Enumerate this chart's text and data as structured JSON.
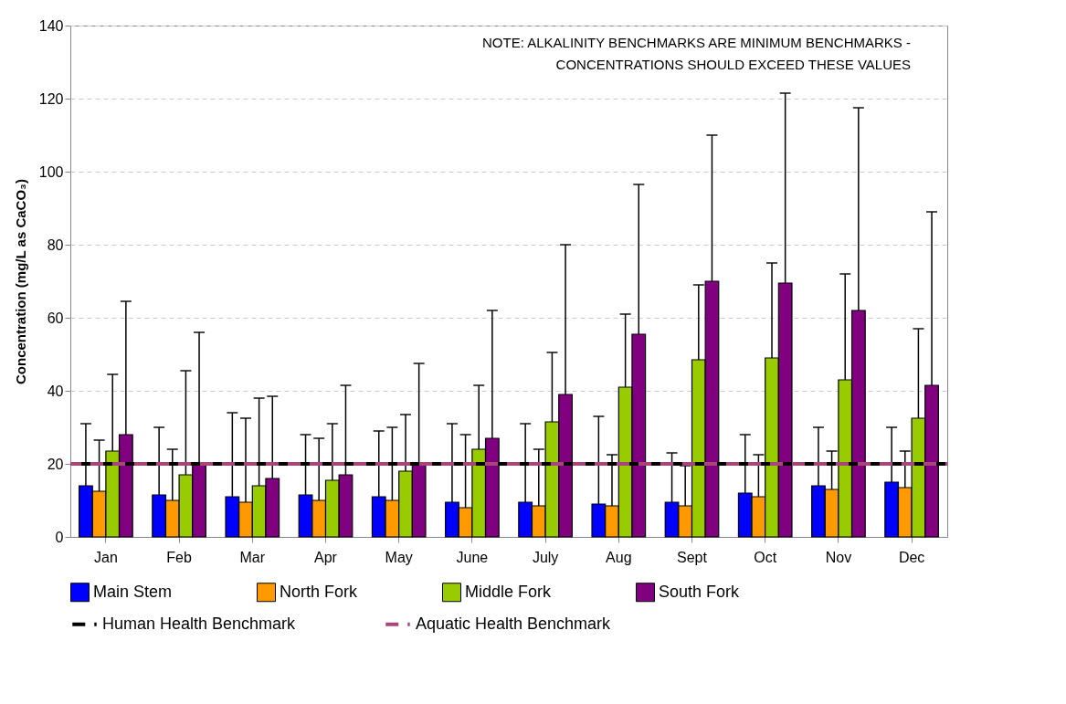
{
  "chart_data": {
    "type": "bar",
    "ylabel": "Concentration (mg/L as CaCO₃)",
    "categories": [
      "Jan",
      "Feb",
      "Mar",
      "Apr",
      "May",
      "June",
      "July",
      "Aug",
      "Sept",
      "Oct",
      "Nov",
      "Dec"
    ],
    "series": [
      {
        "name": "Main Stem",
        "color": "#0000ff",
        "values": [
          14,
          11.5,
          11,
          11.5,
          11,
          9.5,
          9.5,
          9,
          9.5,
          12,
          14,
          15
        ],
        "errors": [
          [
            14,
            31
          ],
          [
            11.5,
            30
          ],
          [
            11,
            34
          ],
          [
            11.5,
            28
          ],
          [
            11,
            29
          ],
          [
            9.5,
            31
          ],
          [
            9.5,
            31
          ],
          [
            9,
            33
          ],
          [
            9.5,
            23
          ],
          [
            12,
            28
          ],
          [
            14,
            30
          ],
          [
            15,
            30
          ]
        ]
      },
      {
        "name": "North Fork",
        "color": "#ff9900",
        "values": [
          12.5,
          10,
          9.5,
          10,
          10,
          8,
          8.5,
          8.5,
          8.5,
          11,
          13,
          13.5
        ],
        "errors": [
          [
            12.5,
            26.5
          ],
          [
            10,
            24
          ],
          [
            9.5,
            32.5
          ],
          [
            10,
            27
          ],
          [
            10,
            30
          ],
          [
            8,
            28
          ],
          [
            8.5,
            24
          ],
          [
            8.5,
            22.5
          ],
          [
            8.5,
            19.5
          ],
          [
            11,
            22.5
          ],
          [
            13,
            23.5
          ],
          [
            13.5,
            23.5
          ]
        ]
      },
      {
        "name": "Middle Fork",
        "color": "#99cc00",
        "values": [
          23.5,
          17,
          14,
          15.5,
          18,
          24,
          31.5,
          41,
          48.5,
          49,
          43,
          32.5
        ],
        "errors": [
          [
            23.5,
            44.5
          ],
          [
            17,
            45.5
          ],
          [
            14,
            38
          ],
          [
            15.5,
            31
          ],
          [
            18,
            33.5
          ],
          [
            24,
            41.5
          ],
          [
            31.5,
            50.5
          ],
          [
            41,
            61
          ],
          [
            48.5,
            69
          ],
          [
            49,
            75
          ],
          [
            43,
            72
          ],
          [
            32.5,
            57
          ]
        ]
      },
      {
        "name": "South Fork",
        "color": "#800080",
        "values": [
          28,
          20,
          16,
          17,
          20,
          27,
          39,
          55.5,
          70,
          69.5,
          62,
          41.5
        ],
        "errors": [
          [
            28,
            64.5
          ],
          [
            20,
            56
          ],
          [
            16,
            38.5
          ],
          [
            17,
            41.5
          ],
          [
            20,
            47.5
          ],
          [
            27,
            62
          ],
          [
            39,
            80
          ],
          [
            55.5,
            96.5
          ],
          [
            70,
            110
          ],
          [
            69.5,
            121.5
          ],
          [
            62,
            117.5
          ],
          [
            41.5,
            89
          ]
        ]
      }
    ],
    "ref_lines": [
      {
        "axis": "y",
        "value": 20,
        "label": "Human Health Benchmark",
        "color": "#000000",
        "line_style": "dashed"
      },
      {
        "axis": "y",
        "value": 20,
        "label": "Aquatic Health Benchmark",
        "color": "#a8457a",
        "line_style": "dashed"
      }
    ],
    "annotations": [
      "NOTE: ALKALINITY BENCHMARKS ARE MINIMUM BENCHMARKS -",
      "CONCENTRATIONS SHOULD EXCEED THESE VALUES"
    ],
    "ylim": [
      0,
      140
    ],
    "yticks": [
      0,
      20,
      40,
      60,
      80,
      100,
      120,
      140
    ],
    "grid": "y",
    "legend": "bottom"
  }
}
